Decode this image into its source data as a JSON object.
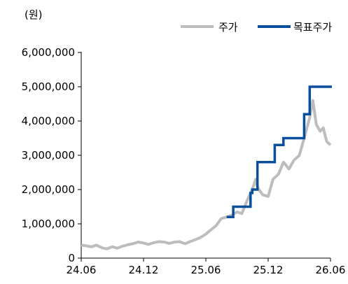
{
  "chart_data": {
    "type": "line",
    "title": "",
    "unit_label": "(원)",
    "xlabel": "",
    "ylabel": "",
    "x_ticks": [
      "24.06",
      "24.12",
      "25.06",
      "25.12",
      "26.06"
    ],
    "y_ticks": [
      "0",
      "1,000,000",
      "2,000,000",
      "3,000,000",
      "4,000,000",
      "5,000,000",
      "6,000,000"
    ],
    "xlim": [
      "2024-06",
      "2026-06"
    ],
    "ylim": [
      0,
      6000000
    ],
    "grid": false,
    "legend_position": "top-right",
    "series": [
      {
        "name": "주가",
        "color": "#bdbdbd",
        "style": "step-noisy",
        "points": [
          [
            "2024-06",
            380000
          ],
          [
            "2024-06-15",
            360000
          ],
          [
            "2024-07",
            330000
          ],
          [
            "2024-07-15",
            380000
          ],
          [
            "2024-08",
            300000
          ],
          [
            "2024-08-15",
            270000
          ],
          [
            "2024-09",
            330000
          ],
          [
            "2024-09-15",
            290000
          ],
          [
            "2024-10",
            350000
          ],
          [
            "2024-10-15",
            390000
          ],
          [
            "2024-11",
            420000
          ],
          [
            "2024-11-15",
            470000
          ],
          [
            "2024-12",
            440000
          ],
          [
            "2024-12-15",
            400000
          ],
          [
            "2025-01",
            450000
          ],
          [
            "2025-01-15",
            480000
          ],
          [
            "2025-02",
            470000
          ],
          [
            "2025-02-15",
            430000
          ],
          [
            "2025-03",
            470000
          ],
          [
            "2025-03-15",
            480000
          ],
          [
            "2025-04",
            420000
          ],
          [
            "2025-04-15",
            480000
          ],
          [
            "2025-05",
            540000
          ],
          [
            "2025-05-15",
            600000
          ],
          [
            "2025-06",
            700000
          ],
          [
            "2025-06-15",
            820000
          ],
          [
            "2025-07",
            950000
          ],
          [
            "2025-07-15",
            1150000
          ],
          [
            "2025-08",
            1200000
          ],
          [
            "2025-08-15",
            1250000
          ],
          [
            "2025-09",
            1350000
          ],
          [
            "2025-09-15",
            1300000
          ],
          [
            "2025-10",
            1700000
          ],
          [
            "2025-10-15",
            2000000
          ],
          [
            "2025-10-25",
            2300000
          ],
          [
            "2025-11",
            2050000
          ],
          [
            "2025-11-15",
            1850000
          ],
          [
            "2025-12",
            1800000
          ],
          [
            "2025-12-15",
            2300000
          ],
          [
            "2026-01",
            2450000
          ],
          [
            "2026-01-15",
            2800000
          ],
          [
            "2026-02",
            2600000
          ],
          [
            "2026-02-15",
            2850000
          ],
          [
            "2026-03",
            3000000
          ],
          [
            "2026-03-15",
            3500000
          ],
          [
            "2026-04",
            4100000
          ],
          [
            "2026-04-10",
            4600000
          ],
          [
            "2026-04-20",
            3900000
          ],
          [
            "2026-05",
            3700000
          ],
          [
            "2026-05-10",
            3800000
          ],
          [
            "2026-05-20",
            3400000
          ],
          [
            "2026-06",
            3300000
          ]
        ]
      },
      {
        "name": "목표주가",
        "color": "#0a4f9e",
        "style": "step",
        "points": [
          [
            "2025-08",
            1200000
          ],
          [
            "2025-08-20",
            1500000
          ],
          [
            "2025-10-10",
            1900000
          ],
          [
            "2025-10-15",
            2000000
          ],
          [
            "2025-10-30",
            2800000
          ],
          [
            "2025-12-20",
            3300000
          ],
          [
            "2026-01-15",
            3500000
          ],
          [
            "2026-03-15",
            4200000
          ],
          [
            "2026-04-01",
            5000000
          ],
          [
            "2026-06-05",
            5000000
          ]
        ]
      }
    ]
  }
}
